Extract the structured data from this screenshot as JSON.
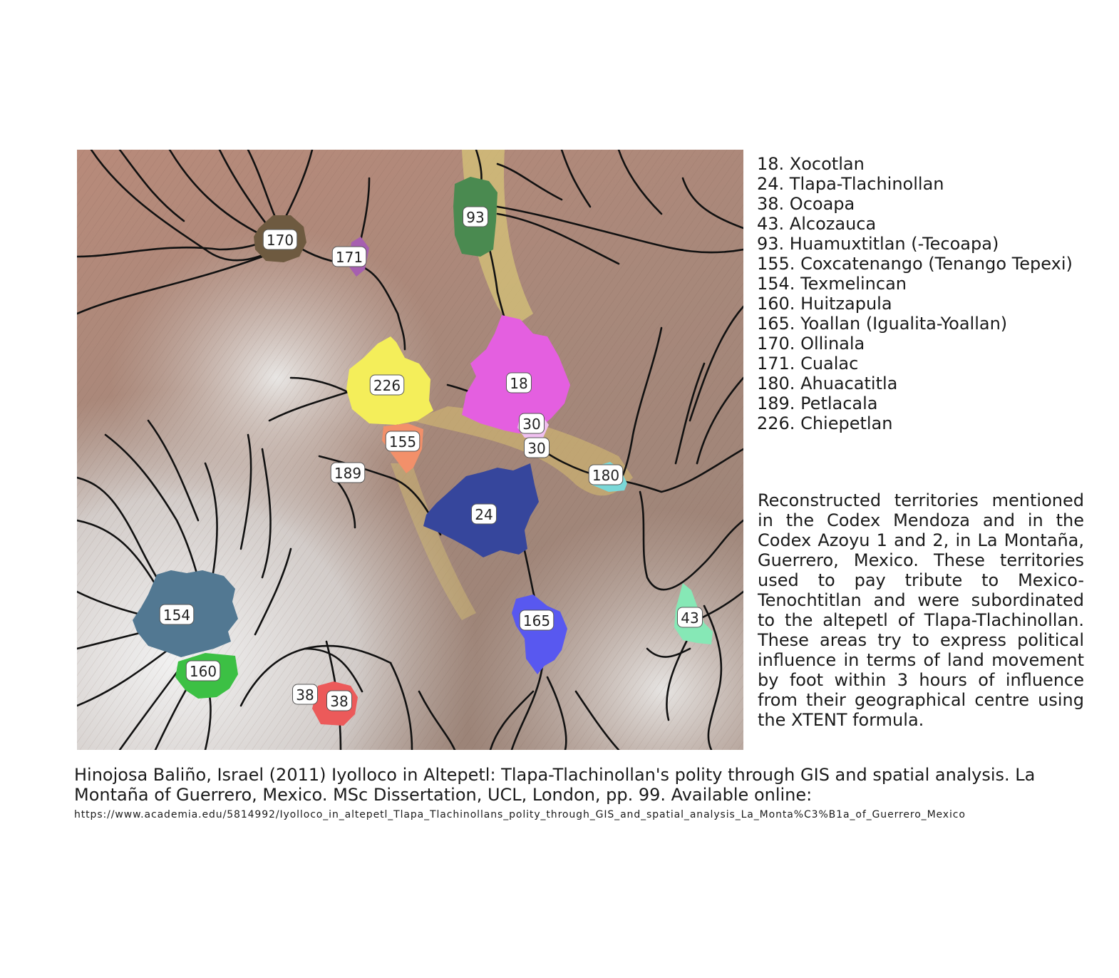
{
  "legend": [
    "18. Xocotlan",
    "24. Tlapa-Tlachinollan",
    "38. Ocoapa",
    "43. Alcozauca",
    "93. Huamuxtitlan (-Tecoapa)",
    "155. Coxcatenango (Tenango Tepexi)",
    "154. Texmelincan",
    "160. Huitzapula",
    "165. Yoallan (Igualita-Yoallan)",
    "170. Ollinala",
    "171. Cualac",
    "180. Ahuacatitla",
    "189. Petlacala",
    "226. Chiepetlan"
  ],
  "caption": "Reconstructed territories mentioned in the Codex Mendoza and in the Codex Azoyu 1 and 2, in La Montaña, Guerrero, Mexico. These territories used to pay tribute to Mexico-Tenochtitlan and were subordinated to the altepetl of Tlapa-Tlachinollan. These areas try to express political influence in terms of land movement by foot within 3 hours of influence from their geographical centre using the XTENT formula.",
  "citation": "Hinojosa Baliño, Israel (2011) Iyolloco in Altepetl: Tlapa-Tlachinollan's polity through GIS and spatial analysis. La Montaña of Guerrero, Mexico. MSc Dissertation, UCL, London, pp. 99. Available online:",
  "citation_url": "https://www.academia.edu/5814992/Iyolloco_in_altepetl_Tlapa_Tlachinollans_polity_through_GIS_and_spatial_analysis_La_Monta%C3%B1a_of_Guerrero_Mexico",
  "map": {
    "territories": [
      {
        "id": "170",
        "color": "#6e5a40"
      },
      {
        "id": "171",
        "color": "#a65fb0"
      },
      {
        "id": "93",
        "color": "#4a8a50"
      },
      {
        "id": "226",
        "color": "#f4ee5a"
      },
      {
        "id": "18",
        "color": "#e45fe0"
      },
      {
        "id": "155",
        "color": "#f2906a"
      },
      {
        "id": "189",
        "color": "#ffffff"
      },
      {
        "id": "30",
        "color": "#f0c0f0"
      },
      {
        "id": "180",
        "color": "#7ad8d8"
      },
      {
        "id": "24",
        "color": "#36469c"
      },
      {
        "id": "154",
        "color": "#527892"
      },
      {
        "id": "160",
        "color": "#3cc044"
      },
      {
        "id": "165",
        "color": "#5858f0"
      },
      {
        "id": "43",
        "color": "#86e8b6"
      },
      {
        "id": "38",
        "color": "#ec5a5a"
      }
    ],
    "labels": [
      "170",
      "171",
      "93",
      "226",
      "18",
      "30",
      "30",
      "155",
      "189",
      "180",
      "24",
      "154",
      "160",
      "165",
      "43",
      "38",
      "38"
    ]
  }
}
